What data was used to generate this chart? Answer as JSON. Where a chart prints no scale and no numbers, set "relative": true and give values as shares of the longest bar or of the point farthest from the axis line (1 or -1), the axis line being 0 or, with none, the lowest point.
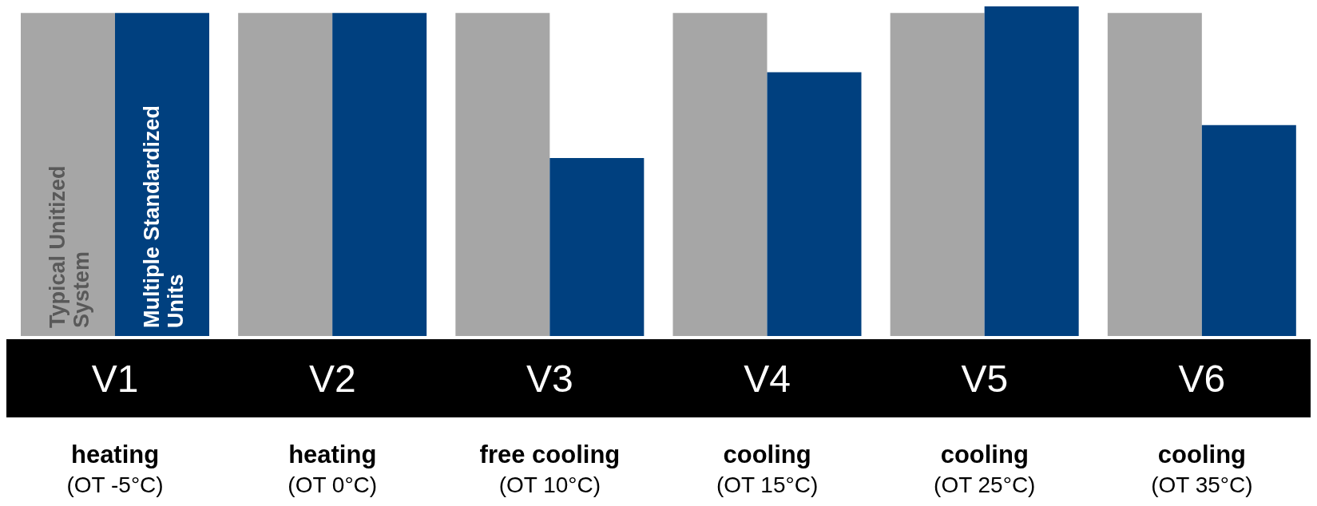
{
  "chart_data": {
    "type": "bar",
    "relative": true,
    "categories": [
      "V1\nheating\n(OT -5°C)",
      "V2\nheating\n(OT 0°C)",
      "V3\nfree cooling\n(OT 10°C)",
      "V4\ncooling\n(OT 15°C)",
      "V5\ncooling\n(OT 25°C)",
      "V6\ncooling\n(OT 35°C)"
    ],
    "series": [
      {
        "name": "Typical Unitized System",
        "color": "#a6a6a6",
        "values": [
          0.98,
          0.98,
          0.98,
          0.98,
          0.98,
          0.98
        ]
      },
      {
        "name": "Multiple Standardized Units",
        "color": "#00407f",
        "values": [
          0.98,
          0.98,
          0.54,
          0.8,
          1,
          0.64
        ]
      }
    ]
  }
}
